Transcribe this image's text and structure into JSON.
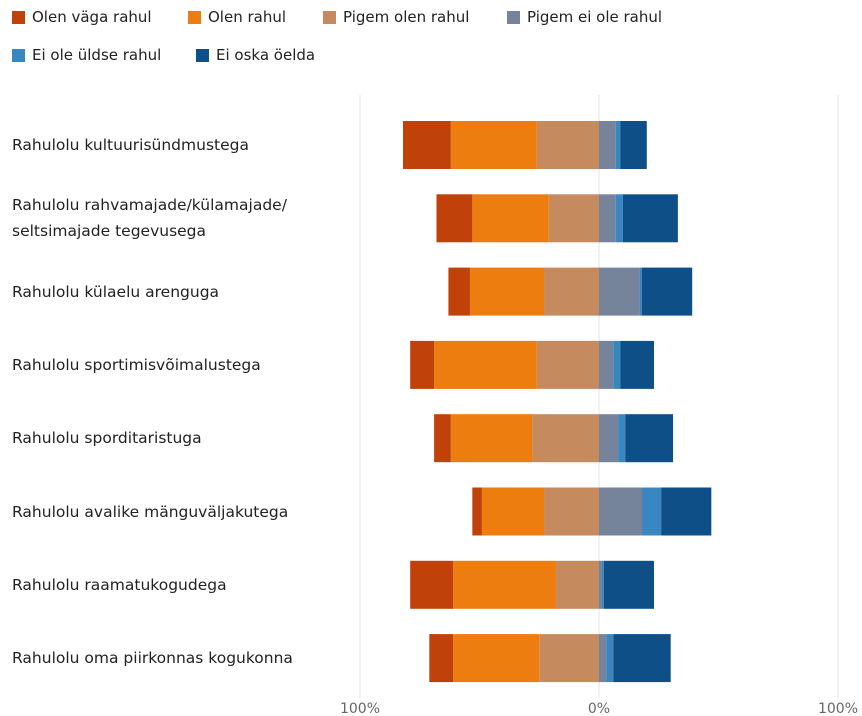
{
  "chart_data": {
    "type": "diverging-stacked-bar",
    "categories": [
      "Rahulolu kultuurisündmustega",
      "Rahulolu rahvamajade/külamajade/ seltsimajade tegevusega",
      "Rahulolu külaelu arenguga",
      "Rahulolu sportimisvõimalustega",
      "Rahulolu sporditaristuga",
      "Rahulolu avalike mänguväljakutega",
      "Rahulolu raamatukogudega",
      "Rahulolu oma piirkonnas kogukonna"
    ],
    "series": [
      {
        "name": "Olen väga rahul",
        "color": "#c0410a",
        "values": [
          -20,
          -15,
          -9,
          -10,
          -7,
          -4,
          -18,
          -10
        ]
      },
      {
        "name": "Olen rahul",
        "color": "#ed7d0f",
        "values": [
          -36,
          -32,
          -31,
          -43,
          -34,
          -26,
          -43,
          -36
        ]
      },
      {
        "name": "Pigem olen rahul",
        "color": "#c58a5e",
        "values": [
          -26,
          -21,
          -23,
          -26,
          -28,
          -23,
          -18,
          -25
        ]
      },
      {
        "name": "Pigem ei ole rahul",
        "color": "#75849a",
        "values": [
          7,
          7,
          17,
          6,
          8,
          18,
          1,
          3
        ]
      },
      {
        "name": "Ei ole üldse rahul",
        "color": "#3a86c0",
        "values": [
          2,
          3,
          1,
          3,
          3,
          8,
          1,
          3
        ]
      },
      {
        "name": "Ei oska öelda",
        "color": "#0e4f88",
        "values": [
          11,
          23,
          21,
          14,
          20,
          21,
          21,
          24
        ]
      }
    ],
    "xlim": [
      -100,
      100
    ],
    "xticks": [
      {
        "value": -100,
        "label": "100%"
      },
      {
        "value": 0,
        "label": "0%"
      },
      {
        "value": 100,
        "label": "100%"
      }
    ],
    "grid": true
  }
}
